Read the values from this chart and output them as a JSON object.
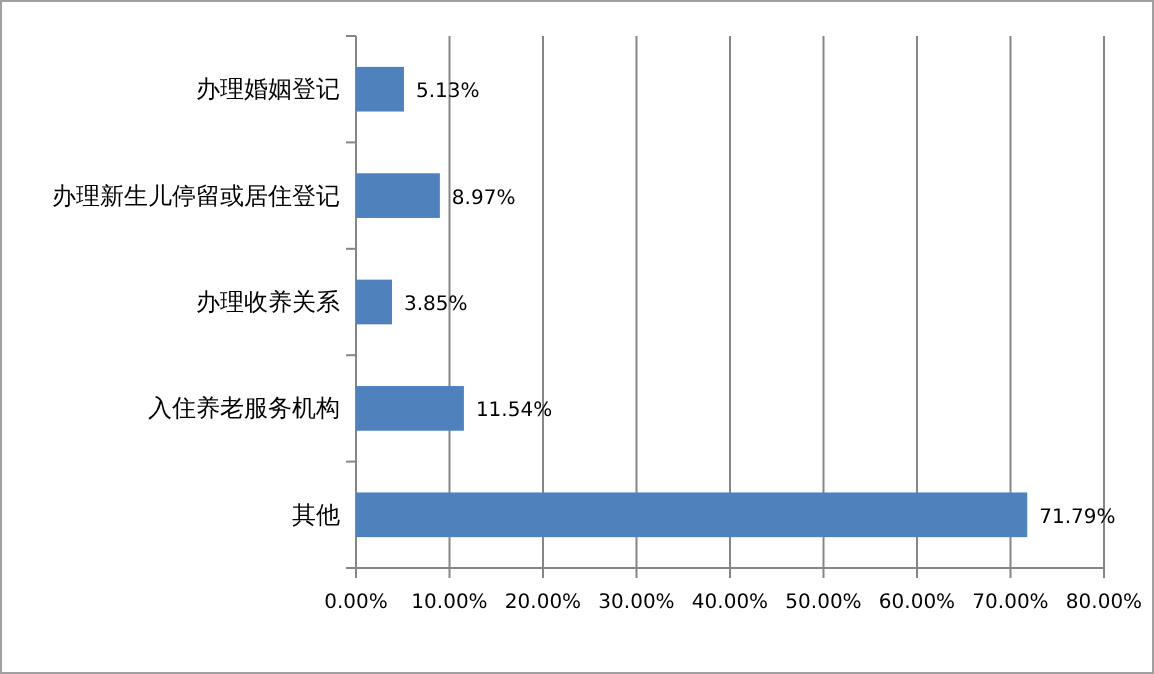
{
  "chart_data": {
    "type": "bar",
    "orientation": "horizontal",
    "categories": [
      "办理婚姻登记",
      "办理新生儿停留或居住登记",
      "办理收养关系",
      "入住养老服务机构",
      "其他"
    ],
    "values": [
      5.13,
      8.97,
      3.85,
      11.54,
      71.79
    ],
    "value_labels": [
      "5.13%",
      "8.97%",
      "3.85%",
      "11.54%",
      "71.79%"
    ],
    "color": "#4f81bd",
    "xlim": [
      0,
      80
    ],
    "xticks": [
      {
        "value": 0,
        "label": "0.00%"
      },
      {
        "value": 10,
        "label": "10.00%"
      },
      {
        "value": 20,
        "label": "20.00%"
      },
      {
        "value": 30,
        "label": "30.00%"
      },
      {
        "value": 40,
        "label": "40.00%"
      },
      {
        "value": 50,
        "label": "50.00%"
      },
      {
        "value": 60,
        "label": "60.00%"
      },
      {
        "value": 70,
        "label": "70.00%"
      },
      {
        "value": 80,
        "label": "80.00%"
      }
    ],
    "grid": "x"
  }
}
